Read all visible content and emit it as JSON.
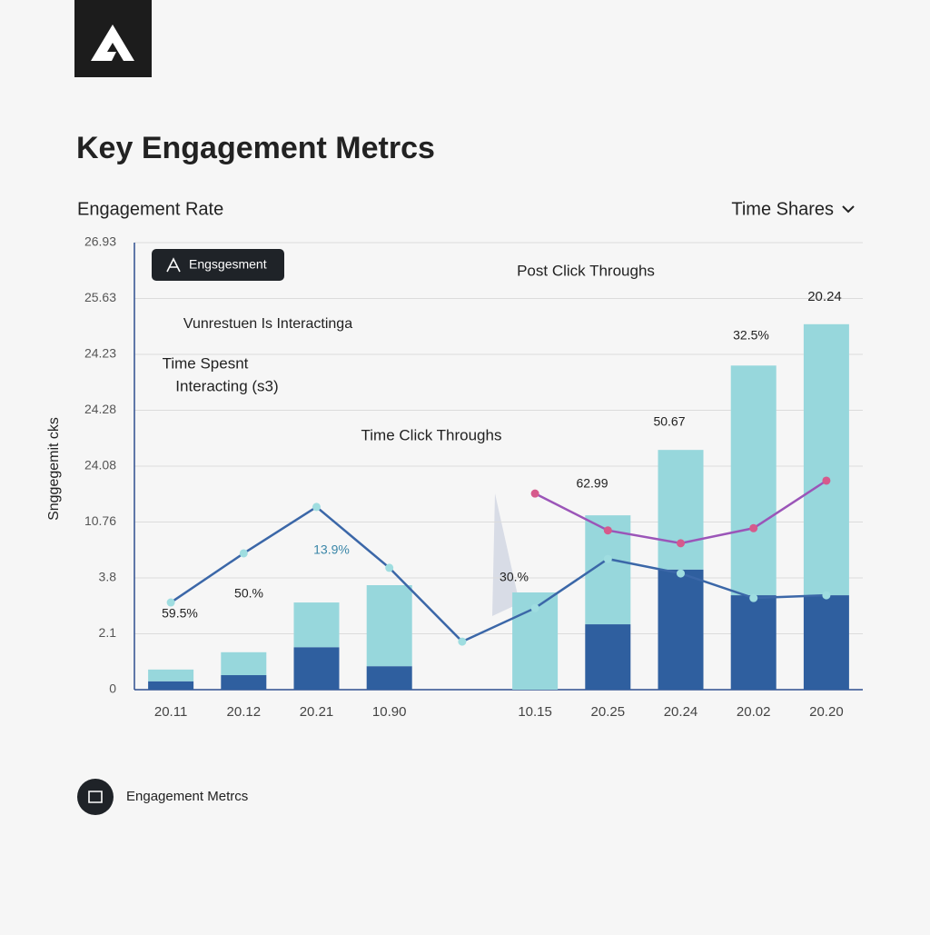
{
  "chart_data": {
    "type": "combo",
    "title": "Key Engagement Metrcs",
    "subtitle": "Engagement Rate",
    "selector": "Time Shares",
    "y_label": "Snggegemit cks",
    "legend_label": "Engsgesment",
    "footer": "Engagement Metrcs",
    "categories": [
      "20.11",
      "20.12",
      "20.21",
      "10.90",
      null,
      "10.15",
      "20.25",
      "20.24",
      "20.02",
      "20.20"
    ],
    "ylim": [
      0,
      8
    ],
    "yticks": [
      0,
      {
        "value": 1,
        "label": "2.1"
      },
      {
        "value": 2,
        "label": "3.8"
      },
      {
        "value": 3,
        "label": "10.76"
      },
      {
        "value": 4,
        "label": "24.08"
      },
      {
        "value": 5,
        "label": "24.28"
      },
      {
        "value": 6,
        "label": "24.23"
      },
      {
        "value": 7,
        "label": "25.63"
      },
      {
        "value": 8,
        "label": "26.93"
      }
    ],
    "grid": true,
    "series": [
      {
        "type": "bar",
        "color": "#2f5f9f",
        "values": [
          0.15,
          0.26,
          0.76,
          0.42,
          null,
          0,
          1.17,
          2.15,
          1.69,
          1.69
        ]
      },
      {
        "type": "bar",
        "color": "#97d7dc",
        "values": [
          0.21,
          0.41,
          0.8,
          1.45,
          null,
          1.74,
          1.95,
          2.14,
          4.11,
          4.85
        ]
      },
      {
        "type": "line",
        "color": "#3b67a8",
        "values": [
          1.56,
          2.44,
          3.27,
          2.18,
          0.86,
          1.46,
          2.34,
          2.08,
          1.64,
          1.69
        ]
      },
      {
        "type": "line",
        "color": "#9b55b8",
        "values": [
          null,
          null,
          null,
          null,
          null,
          3.51,
          2.85,
          2.62,
          2.89,
          3.74
        ]
      }
    ],
    "annotations": [
      "Post Click Throughs",
      "Vunrestuen Is Interactinga",
      "Time Spesnt",
      "Interacting (s3)",
      "Time Click Throughs",
      "59.5%",
      "50.%",
      "13.9%",
      "30.%",
      "62.99",
      "50.67",
      "32.5%",
      "20.24"
    ]
  }
}
